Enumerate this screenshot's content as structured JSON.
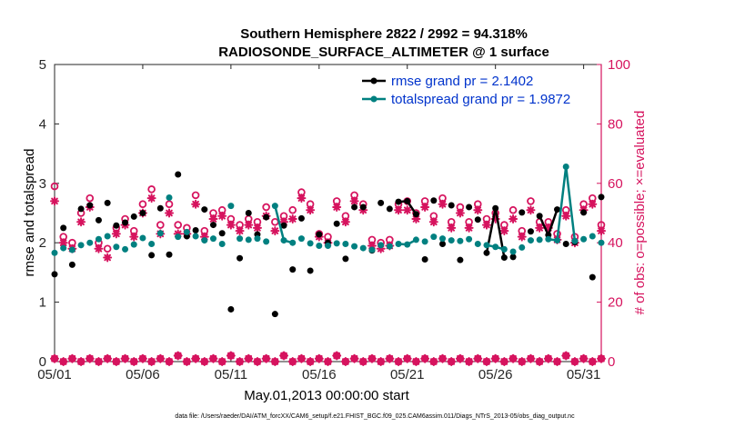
{
  "chart_data": {
    "type": "line",
    "title_line1": "Southern Hemisphere 2822 / 2992 = 94.318%",
    "title_line2": "RADIOSONDE_SURFACE_ALTIMETER @ 1 surface",
    "xlabel": "May.01,2013 00:00:00 start",
    "ylabel_left": "rmse and totalspread",
    "ylabel_right": "# of obs: o=possible; ×=evaluated",
    "ylim_left": [
      0,
      5
    ],
    "ylim_right": [
      0,
      100
    ],
    "xlim": [
      0,
      31
    ],
    "x_ticks": [
      0,
      5,
      10,
      15,
      20,
      25,
      30
    ],
    "x_tick_labels": [
      "05/01",
      "05/06",
      "05/11",
      "05/16",
      "05/21",
      "05/26",
      "05/31"
    ],
    "y_ticks_left": [
      "0",
      "1",
      "2",
      "3",
      "4",
      "5"
    ],
    "y_ticks_right": [
      "0",
      "20",
      "40",
      "60",
      "80",
      "100"
    ],
    "colors": {
      "rmse": "#000000",
      "spread": "#008080",
      "obs": "#d6135e",
      "legend_text": "#0033cc"
    },
    "series": [
      {
        "name": "rmse grand pr = 2.1402",
        "key": "rmse",
        "x": [
          0,
          0.5,
          1,
          1.5,
          2,
          2.5,
          3,
          3.5,
          4,
          4.5,
          5,
          5.5,
          6,
          6.5,
          7,
          7.5,
          8,
          8.5,
          9,
          9.5,
          10,
          10.5,
          11,
          11.5,
          12,
          12.5,
          13,
          13.5,
          14,
          14.5,
          15,
          15.5,
          16,
          16.5,
          17,
          17.5,
          18,
          18.5,
          19,
          19.5,
          20,
          20.5,
          21,
          21.5,
          22,
          22.5,
          23,
          23.5,
          24,
          24.5,
          25,
          25.5,
          26,
          26.5,
          27,
          27.5,
          28,
          28.5,
          29,
          29.5,
          30,
          30.5,
          31
        ],
        "values": [
          1.47,
          2.25,
          1.63,
          2.57,
          2.63,
          2.38,
          2.67,
          2.29,
          2.34,
          2.44,
          2.5,
          1.79,
          2.58,
          1.8,
          3.15,
          2.11,
          2.21,
          2.56,
          2.3,
          2.16,
          0.88,
          1.74,
          2.5,
          2.14,
          2.43,
          0.8,
          2.29,
          1.55,
          2.41,
          1.53,
          2.14,
          2.0,
          2.32,
          1.73,
          2.6,
          2.6,
          1.87,
          2.67,
          2.57,
          2.69,
          2.7,
          2.48,
          1.72,
          2.71,
          1.98,
          2.63,
          1.71,
          2.6,
          2.39,
          1.83,
          2.58,
          1.75,
          1.76,
          2.51,
          2.19,
          2.45,
          2.13,
          2.56,
          1.98,
          2.01,
          2.51,
          1.42,
          2.77
        ]
      },
      {
        "name": "totalspread grand pr = 1.9872",
        "key": "spread",
        "x": [
          0,
          0.5,
          1,
          1.5,
          2,
          2.5,
          3,
          3.5,
          4,
          4.5,
          5,
          5.5,
          6,
          6.5,
          7,
          7.5,
          8,
          8.5,
          9,
          9.5,
          10,
          10.5,
          11,
          11.5,
          12,
          12.5,
          13,
          13.5,
          14,
          14.5,
          15,
          15.5,
          16,
          16.5,
          17,
          17.5,
          18,
          18.5,
          19,
          19.5,
          20,
          20.5,
          21,
          21.5,
          22,
          22.5,
          23,
          23.5,
          24,
          24.5,
          25,
          25.5,
          26,
          26.5,
          27,
          27.5,
          28,
          28.5,
          29,
          29.5,
          30,
          30.5,
          31
        ],
        "values": [
          1.83,
          1.91,
          1.88,
          1.96,
          2.0,
          2.06,
          2.11,
          1.93,
          1.89,
          1.97,
          2.08,
          1.98,
          2.16,
          2.76,
          2.1,
          2.18,
          2.11,
          2.04,
          2.07,
          1.98,
          2.62,
          2.07,
          2.05,
          2.07,
          2.02,
          2.62,
          2.04,
          2.0,
          2.07,
          1.99,
          1.95,
          1.95,
          1.99,
          1.98,
          1.94,
          1.91,
          1.88,
          1.96,
          1.94,
          1.98,
          1.97,
          2.05,
          2.02,
          2.1,
          2.07,
          2.04,
          2.03,
          2.06,
          1.98,
          1.96,
          1.93,
          1.89,
          1.85,
          1.92,
          2.04,
          2.05,
          2.06,
          2.04,
          3.28,
          2.03,
          2.06,
          2.11,
          2.0
        ]
      }
    ],
    "obs_possible": {
      "x": [
        0,
        0.5,
        1,
        1.5,
        2,
        2.5,
        3,
        3.5,
        4,
        4.5,
        5,
        5.5,
        6,
        6.5,
        7,
        7.5,
        8,
        8.5,
        9,
        9.5,
        10,
        10.5,
        11,
        11.5,
        12,
        12.5,
        13,
        13.5,
        14,
        14.5,
        15,
        15.5,
        16,
        16.5,
        17,
        17.5,
        18,
        18.5,
        19,
        19.5,
        20,
        20.5,
        21,
        21.5,
        22,
        22.5,
        23,
        23.5,
        24,
        24.5,
        25,
        25.5,
        26,
        26.5,
        27,
        27.5,
        28,
        28.5,
        29,
        29.5,
        30,
        30.5,
        31
      ],
      "values": [
        59,
        42,
        40,
        50,
        55,
        40,
        38,
        45,
        48,
        44,
        53,
        58,
        46,
        53,
        46,
        45,
        56,
        44,
        50,
        51,
        48,
        46,
        48,
        47,
        52,
        47,
        49,
        51,
        57,
        53,
        43,
        42,
        54,
        49,
        56,
        53,
        41,
        40,
        41,
        53,
        54,
        50,
        54,
        49,
        55,
        47,
        52,
        47,
        53,
        48,
        50,
        46,
        51,
        44,
        54,
        47,
        47,
        43,
        51,
        42,
        53,
        55,
        46
      ]
    },
    "obs_evaluated": {
      "x": [
        0,
        0.5,
        1,
        1.5,
        2,
        2.5,
        3,
        3.5,
        4,
        4.5,
        5,
        5.5,
        6,
        6.5,
        7,
        7.5,
        8,
        8.5,
        9,
        9.5,
        10,
        10.5,
        11,
        11.5,
        12,
        12.5,
        13,
        13.5,
        14,
        14.5,
        15,
        15.5,
        16,
        16.5,
        17,
        17.5,
        18,
        18.5,
        19,
        19.5,
        20,
        20.5,
        21,
        21.5,
        22,
        22.5,
        23,
        23.5,
        24,
        24.5,
        25,
        25.5,
        26,
        26.5,
        27,
        27.5,
        28,
        28.5,
        29,
        29.5,
        30,
        30.5,
        31
      ],
      "values": [
        54,
        40,
        38,
        47,
        52,
        38,
        35,
        43,
        46,
        42,
        50,
        55,
        43,
        50,
        43,
        43,
        53,
        42,
        48,
        49,
        46,
        44,
        46,
        45,
        49,
        44,
        47,
        48,
        55,
        51,
        42,
        40,
        52,
        47,
        54,
        51,
        39,
        38,
        39,
        51,
        51,
        48,
        52,
        47,
        53,
        45,
        50,
        45,
        51,
        46,
        48,
        44,
        48,
        42,
        51,
        45,
        45,
        41,
        49,
        40,
        51,
        53,
        44
      ]
    },
    "obs_baseline": {
      "x": [
        0,
        0.5,
        1,
        1.5,
        2,
        2.5,
        3,
        3.5,
        4,
        4.5,
        5,
        5.5,
        6,
        6.5,
        7,
        7.5,
        8,
        8.5,
        9,
        9.5,
        10,
        10.5,
        11,
        11.5,
        12,
        12.5,
        13,
        13.5,
        14,
        14.5,
        15,
        15.5,
        16,
        16.5,
        17,
        17.5,
        18,
        18.5,
        19,
        19.5,
        20,
        20.5,
        21,
        21.5,
        22,
        22.5,
        23,
        23.5,
        24,
        24.5,
        25,
        25.5,
        26,
        26.5,
        27,
        27.5,
        28,
        28.5,
        29,
        29.5,
        30,
        30.5,
        31
      ],
      "values": [
        1,
        0,
        1,
        0,
        1,
        0,
        1,
        0,
        1,
        0,
        1,
        0,
        1,
        0,
        2,
        0,
        1,
        0,
        1,
        0,
        2,
        0,
        1,
        0,
        1,
        0,
        2,
        0,
        1,
        0,
        1,
        0,
        2,
        0,
        1,
        0,
        1,
        0,
        1,
        0,
        1,
        0,
        1,
        0,
        1,
        0,
        1,
        0,
        1,
        0,
        1,
        0,
        1,
        0,
        1,
        0,
        1,
        0,
        2,
        0,
        1,
        0,
        1
      ]
    },
    "footer": "data file: /Users/raeder/DAI/ATM_forcXX/CAM6_setup/f.e21.FHIST_BGC.f09_025.CAM6assim.011/Diags_NTrS_2013-05/obs_diag_output.nc"
  }
}
